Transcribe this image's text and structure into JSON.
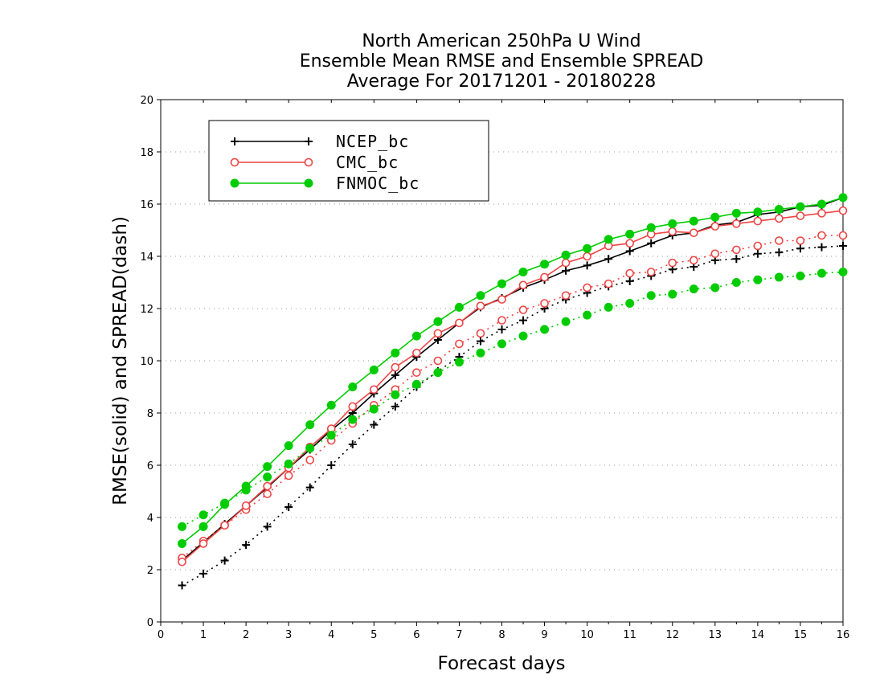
{
  "chart_data": {
    "type": "line",
    "title": [
      "North American 250hPa U Wind",
      "Ensemble Mean RMSE and Ensemble SPREAD",
      "Average For 20171201 - 20180228"
    ],
    "xlabel": "Forecast days",
    "ylabel": "RMSE(solid) and SPREAD(dash)",
    "xlim": [
      0,
      16
    ],
    "ylim": [
      0,
      20
    ],
    "xticks": [
      "0",
      "1",
      "2",
      "3",
      "4",
      "5",
      "6",
      "7",
      "8",
      "9",
      "10",
      "11",
      "12",
      "13",
      "14",
      "15",
      "16"
    ],
    "yticks": [
      "0",
      "2",
      "4",
      "6",
      "8",
      "10",
      "12",
      "14",
      "16",
      "18",
      "20"
    ],
    "grid": true,
    "legend_position": "top-left",
    "x": [
      0.5,
      1,
      1.5,
      2,
      2.5,
      3,
      3.5,
      4,
      4.5,
      5,
      5.5,
      6,
      6.5,
      7,
      7.5,
      8,
      8.5,
      9,
      9.5,
      10,
      10.5,
      11,
      11.5,
      12,
      12.5,
      13,
      13.5,
      14,
      14.5,
      15,
      15.5,
      16
    ],
    "series": [
      {
        "name": "NCEP_bc",
        "color": "#000000",
        "marker": "plus",
        "rmse": [
          2.35,
          3.05,
          3.75,
          4.45,
          5.15,
          5.9,
          6.6,
          7.35,
          8.0,
          8.75,
          9.45,
          10.15,
          10.8,
          11.45,
          12.05,
          12.4,
          12.8,
          13.1,
          13.45,
          13.65,
          13.9,
          14.2,
          14.5,
          14.8,
          14.9,
          15.2,
          15.3,
          15.6,
          15.7,
          15.9,
          15.95,
          16.25
        ],
        "spread": [
          1.4,
          1.85,
          2.35,
          2.95,
          3.65,
          4.4,
          5.15,
          6.0,
          6.8,
          7.55,
          8.25,
          9.0,
          9.6,
          10.15,
          10.75,
          11.2,
          11.55,
          12.0,
          12.35,
          12.6,
          12.85,
          13.05,
          13.25,
          13.5,
          13.6,
          13.85,
          13.9,
          14.1,
          14.15,
          14.3,
          14.35,
          14.4
        ]
      },
      {
        "name": "CMC_bc",
        "color": "#ee4444",
        "marker": "circle-open",
        "rmse": [
          2.3,
          3.0,
          3.7,
          4.45,
          5.2,
          5.9,
          6.7,
          7.4,
          8.25,
          8.9,
          9.75,
          10.3,
          11.05,
          11.45,
          12.1,
          12.35,
          12.9,
          13.2,
          13.75,
          14.0,
          14.4,
          14.5,
          14.85,
          14.95,
          14.9,
          15.15,
          15.25,
          15.35,
          15.45,
          15.55,
          15.65,
          15.75
        ],
        "spread": [
          2.45,
          3.1,
          3.7,
          4.3,
          4.9,
          5.6,
          6.2,
          6.95,
          7.6,
          8.3,
          8.9,
          9.55,
          10.0,
          10.65,
          11.05,
          11.55,
          11.95,
          12.2,
          12.5,
          12.8,
          12.95,
          13.35,
          13.4,
          13.75,
          13.85,
          14.1,
          14.25,
          14.4,
          14.6,
          14.6,
          14.8,
          14.8
        ]
      },
      {
        "name": "FNMOC_bc",
        "color": "#00cc00",
        "marker": "circle-filled",
        "rmse": [
          3.0,
          3.65,
          4.5,
          5.2,
          5.95,
          6.75,
          7.55,
          8.3,
          9.0,
          9.65,
          10.3,
          10.95,
          11.5,
          12.05,
          12.5,
          12.95,
          13.4,
          13.7,
          14.05,
          14.3,
          14.65,
          14.85,
          15.1,
          15.25,
          15.35,
          15.5,
          15.65,
          15.7,
          15.8,
          15.9,
          16.0,
          16.25
        ],
        "spread": [
          3.65,
          4.1,
          4.55,
          5.05,
          5.55,
          6.05,
          6.65,
          7.15,
          7.75,
          8.15,
          8.7,
          9.1,
          9.55,
          9.95,
          10.3,
          10.65,
          10.95,
          11.2,
          11.5,
          11.75,
          12.05,
          12.2,
          12.5,
          12.55,
          12.75,
          12.8,
          13.0,
          13.1,
          13.2,
          13.25,
          13.35,
          13.4
        ]
      }
    ]
  }
}
